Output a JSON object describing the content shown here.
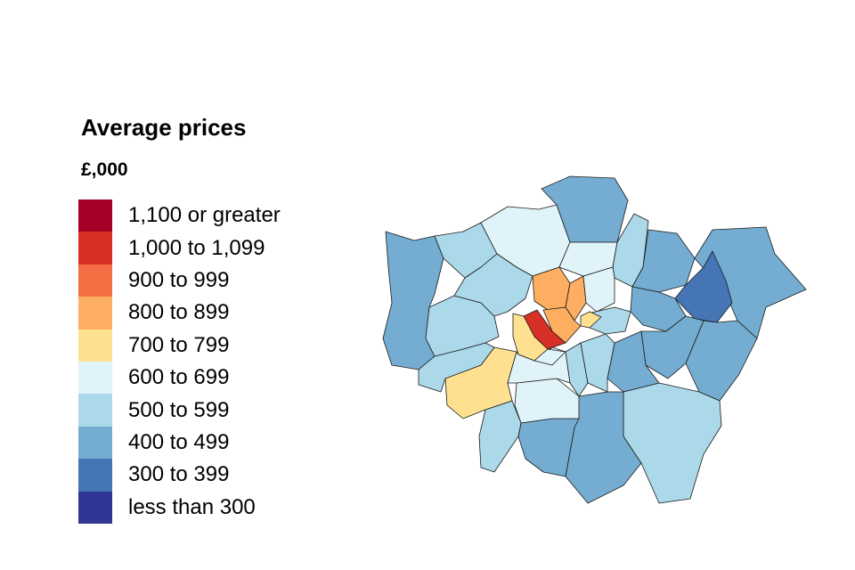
{
  "legend": {
    "title": "Average prices",
    "unit": "£,000",
    "items": [
      {
        "label": "1,100 or greater",
        "color": "#a50026"
      },
      {
        "label": "1,000 to 1,099",
        "color": "#d73027"
      },
      {
        "label": "900 to 999",
        "color": "#f46d43"
      },
      {
        "label": "800 to 899",
        "color": "#fdae61"
      },
      {
        "label": "700 to 799",
        "color": "#fee090"
      },
      {
        "label": "600 to 699",
        "color": "#e0f3f8"
      },
      {
        "label": "500 to 599",
        "color": "#abd9e9"
      },
      {
        "label": "400 to 499",
        "color": "#74add1"
      },
      {
        "label": "300 to 399",
        "color": "#4575b4"
      },
      {
        "label": "less than 300",
        "color": "#313695"
      }
    ]
  }
}
